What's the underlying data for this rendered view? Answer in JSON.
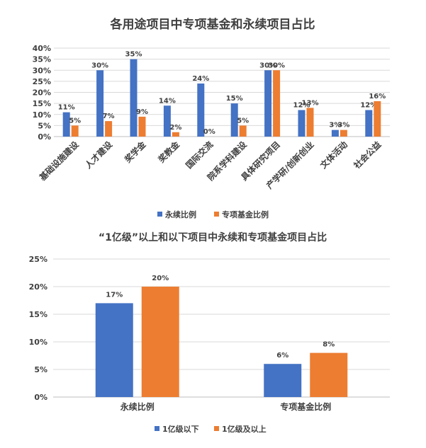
{
  "colors": {
    "blue": "#4472c4",
    "orange": "#ed7d31"
  },
  "chart_data": [
    {
      "type": "bar",
      "title": "各用途项目中专项基金和永续项目占比",
      "categories": [
        "基础设施建设",
        "人才建设",
        "奖学金",
        "奖教金",
        "国际交流",
        "院系学科建设",
        "具体研究项目",
        "产学研/创新创业",
        "文体活动",
        "社会公益"
      ],
      "series": [
        {
          "name": "永续比例",
          "values": [
            11,
            30,
            35,
            14,
            24,
            15,
            30,
            12,
            3,
            12
          ],
          "labels": [
            "11%",
            "30%",
            "35%",
            "14%",
            "24%",
            "15%",
            "30%",
            "12%",
            "3%",
            "12%"
          ]
        },
        {
          "name": "专项基金比例",
          "values": [
            5,
            7,
            9,
            2,
            0,
            5,
            30,
            13,
            3,
            16
          ],
          "labels": [
            "5%",
            "7%",
            "9%",
            "2%",
            "0%",
            "5%",
            "30%",
            "13%",
            "3%",
            "16%"
          ]
        }
      ],
      "yticks": [
        "0%",
        "5%",
        "10%",
        "15%",
        "20%",
        "25%",
        "30%",
        "35%",
        "40%"
      ],
      "ylim": [
        0,
        40
      ],
      "grid": true,
      "legend": "bottom"
    },
    {
      "type": "bar",
      "title": "“1亿级”以上和以下项目中永续和专项基金项目占比",
      "categories": [
        "永续比例",
        "专项基金比例"
      ],
      "series": [
        {
          "name": "1亿级以下",
          "values": [
            17,
            6
          ],
          "labels": [
            "17%",
            "6%"
          ]
        },
        {
          "name": "1亿级及以上",
          "values": [
            20,
            8
          ],
          "labels": [
            "20%",
            "8%"
          ]
        }
      ],
      "yticks": [
        "0%",
        "5%",
        "10%",
        "15%",
        "20%",
        "25%"
      ],
      "ylim": [
        0,
        25
      ],
      "grid": true,
      "legend": "bottom"
    }
  ]
}
